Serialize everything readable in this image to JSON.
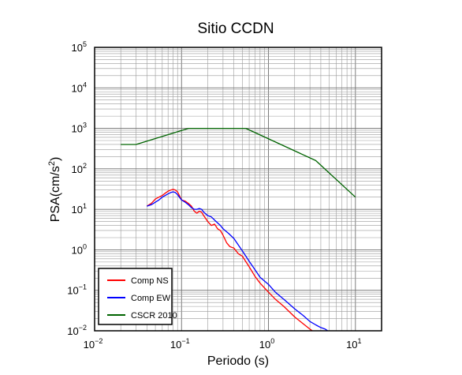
{
  "chart_data": {
    "type": "line",
    "title": "Sitio CCDN",
    "xlabel": "Periodo (s)",
    "ylabel_main": "PSA(cm/s",
    "ylabel_sup": "2",
    "ylabel_close": ")",
    "x_scale": "log",
    "y_scale": "log",
    "xlim": [
      0.01,
      20
    ],
    "ylim": [
      0.01,
      100000
    ],
    "x_ticks": [
      {
        "base": "10",
        "exp": "−2",
        "value": 0.01
      },
      {
        "base": "10",
        "exp": "−1",
        "value": 0.1
      },
      {
        "base": "10",
        "exp": "0",
        "value": 1
      },
      {
        "base": "10",
        "exp": "1",
        "value": 10
      }
    ],
    "y_ticks": [
      {
        "base": "10",
        "exp": "−2",
        "value": 0.01
      },
      {
        "base": "10",
        "exp": "−1",
        "value": 0.1
      },
      {
        "base": "10",
        "exp": "0",
        "value": 1
      },
      {
        "base": "10",
        "exp": "1",
        "value": 10
      },
      {
        "base": "10",
        "exp": "2",
        "value": 100
      },
      {
        "base": "10",
        "exp": "3",
        "value": 1000
      },
      {
        "base": "10",
        "exp": "4",
        "value": 10000
      },
      {
        "base": "10",
        "exp": "5",
        "value": 100000
      }
    ],
    "grid": true,
    "legend_position": "bottom-left",
    "series": [
      {
        "name": "Comp NS",
        "color": "#ff0000",
        "x": [
          0.04,
          0.045,
          0.05,
          0.055,
          0.06,
          0.065,
          0.07,
          0.075,
          0.08,
          0.085,
          0.09,
          0.1,
          0.11,
          0.12,
          0.13,
          0.14,
          0.15,
          0.16,
          0.17,
          0.18,
          0.2,
          0.22,
          0.24,
          0.26,
          0.28,
          0.3,
          0.33,
          0.36,
          0.4,
          0.45,
          0.5,
          0.6,
          0.7,
          0.8,
          1.0,
          1.2,
          1.5,
          2.0,
          2.5,
          3.0,
          3.2
        ],
        "y": [
          12,
          14,
          18,
          20,
          22,
          25,
          28,
          30,
          31,
          30,
          27,
          17,
          16,
          14,
          12,
          9,
          8,
          9,
          8.5,
          7,
          5,
          4,
          4.3,
          3.3,
          3,
          2.3,
          1.5,
          1.2,
          1.1,
          0.8,
          0.7,
          0.38,
          0.22,
          0.15,
          0.09,
          0.06,
          0.04,
          0.022,
          0.015,
          0.011,
          0.01
        ]
      },
      {
        "name": "Comp EW",
        "color": "#0000ff",
        "x": [
          0.04,
          0.045,
          0.05,
          0.055,
          0.06,
          0.065,
          0.07,
          0.075,
          0.08,
          0.085,
          0.09,
          0.1,
          0.11,
          0.12,
          0.13,
          0.14,
          0.15,
          0.16,
          0.17,
          0.18,
          0.2,
          0.22,
          0.25,
          0.28,
          0.3,
          0.35,
          0.4,
          0.5,
          0.6,
          0.7,
          0.8,
          1.0,
          1.2,
          1.5,
          2.0,
          2.5,
          3.0,
          3.5,
          4.0,
          4.5,
          4.8
        ],
        "y": [
          12,
          13,
          15,
          17,
          20,
          22,
          24,
          26,
          27,
          26,
          23,
          17,
          15,
          13,
          11,
          10,
          10,
          10.5,
          10,
          8.5,
          7,
          6.5,
          5,
          4,
          3.3,
          2.5,
          1.9,
          0.95,
          0.52,
          0.32,
          0.21,
          0.14,
          0.09,
          0.06,
          0.035,
          0.024,
          0.017,
          0.014,
          0.012,
          0.011,
          0.01
        ]
      },
      {
        "name": "CSCR 2010",
        "color": "#006400",
        "x": [
          0.02,
          0.03,
          0.12,
          0.55,
          3.5,
          10
        ],
        "y": [
          400,
          400,
          1000,
          1000,
          160,
          20
        ]
      }
    ]
  }
}
